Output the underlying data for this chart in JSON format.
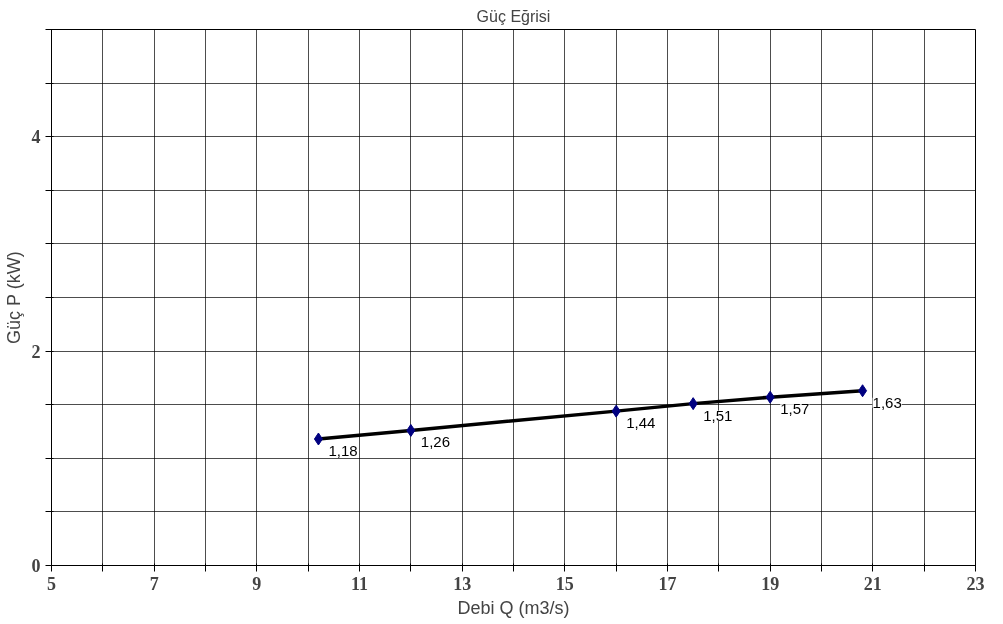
{
  "chart_data": {
    "type": "line",
    "title": "Güç Eğrisi",
    "xlabel": "Debi Q (m3/s)",
    "ylabel": "Güç P (kW)",
    "x": [
      10.2,
      12,
      16,
      17.5,
      19,
      20.8
    ],
    "series": [
      {
        "color": "#000080",
        "values": [
          1.18,
          1.26,
          1.44,
          1.51,
          1.57,
          1.63
        ],
        "value_labels": [
          "1,18",
          "1,26",
          "1,44",
          "1,51",
          "1,57",
          "1,63"
        ]
      }
    ],
    "xlim": [
      5,
      23
    ],
    "xticks": [
      5,
      {
        "value": 6,
        "label": null
      },
      7,
      {
        "value": 8,
        "label": null
      },
      9,
      {
        "value": 10,
        "label": null
      },
      11,
      {
        "value": 12,
        "label": null
      },
      13,
      {
        "value": 14,
        "label": null
      },
      15,
      {
        "value": 16,
        "label": null
      },
      17,
      {
        "value": 18,
        "label": null
      },
      19,
      {
        "value": 20,
        "label": null
      },
      21,
      {
        "value": 22,
        "label": null
      },
      23
    ],
    "ylim": [
      0,
      5
    ],
    "yticks": [
      0,
      {
        "value": 0.5,
        "label": null
      },
      {
        "value": 1,
        "label": null
      },
      {
        "value": 1.5,
        "label": null
      },
      2,
      {
        "value": 2.5,
        "label": null
      },
      {
        "value": 3,
        "label": null
      },
      {
        "value": 3.5,
        "label": null
      },
      4,
      {
        "value": 4.5,
        "label": null
      },
      {
        "value": 5,
        "label": null
      }
    ],
    "grid": true,
    "marker": "diamond",
    "line_style": "solid"
  }
}
